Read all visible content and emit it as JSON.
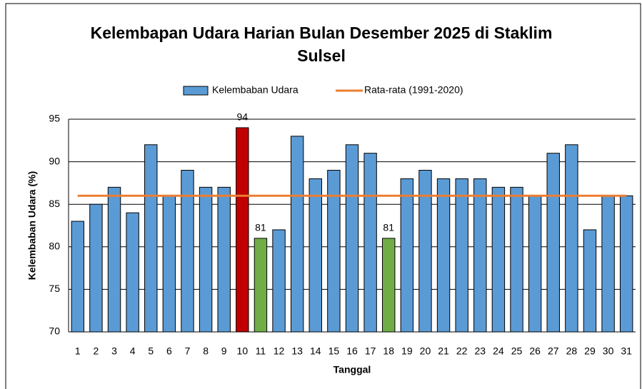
{
  "chart_data": {
    "type": "bar",
    "title": "Kelembapan Udara Harian Bulan Desember 2025 di Staklim Sulsel",
    "x_label": "Tanggal",
    "y_label": "Kelembaban Udara (%)",
    "categories": [
      "1",
      "2",
      "3",
      "4",
      "5",
      "6",
      "7",
      "8",
      "9",
      "10",
      "11",
      "12",
      "13",
      "14",
      "15",
      "16",
      "17",
      "18",
      "19",
      "20",
      "21",
      "22",
      "23",
      "24",
      "25",
      "26",
      "27",
      "28",
      "29",
      "30",
      "31"
    ],
    "series": [
      {
        "name": "Kelembaban Udara",
        "type": "bar",
        "color": "#5b9bd5",
        "colors": [
          "#5b9bd5",
          "#5b9bd5",
          "#5b9bd5",
          "#5b9bd5",
          "#5b9bd5",
          "#5b9bd5",
          "#5b9bd5",
          "#5b9bd5",
          "#5b9bd5",
          "#c00000",
          "#70ad47",
          "#5b9bd5",
          "#5b9bd5",
          "#5b9bd5",
          "#5b9bd5",
          "#5b9bd5",
          "#5b9bd5",
          "#70ad47",
          "#5b9bd5",
          "#5b9bd5",
          "#5b9bd5",
          "#5b9bd5",
          "#5b9bd5",
          "#5b9bd5",
          "#5b9bd5",
          "#5b9bd5",
          "#5b9bd5",
          "#5b9bd5",
          "#5b9bd5",
          "#5b9bd5",
          "#5b9bd5"
        ],
        "values": [
          83,
          85,
          87,
          84,
          92,
          86,
          89,
          87,
          87,
          94,
          81,
          82,
          93,
          88,
          89,
          92,
          91,
          81,
          88,
          89,
          88,
          88,
          88,
          87,
          87,
          86,
          91,
          92,
          82,
          86,
          86
        ],
        "value_labels": [
          null,
          null,
          null,
          null,
          null,
          null,
          null,
          null,
          null,
          "94",
          "81",
          null,
          null,
          null,
          null,
          null,
          null,
          "81",
          null,
          null,
          null,
          null,
          null,
          null,
          null,
          null,
          null,
          null,
          null,
          null,
          null
        ]
      },
      {
        "name": "Rata-rata (1991-2020)",
        "type": "line",
        "color": "#ed7d31",
        "values": [
          86,
          86,
          86,
          86,
          86,
          86,
          86,
          86,
          86,
          86,
          86,
          86,
          86,
          86,
          86,
          86,
          86,
          86,
          86,
          86,
          86,
          86,
          86,
          86,
          86,
          86,
          86,
          86,
          86,
          86,
          86
        ]
      }
    ],
    "ylim": [
      70,
      95
    ],
    "yticks": [
      70,
      75,
      80,
      85,
      90,
      95
    ],
    "grid": true,
    "legend": "top"
  }
}
